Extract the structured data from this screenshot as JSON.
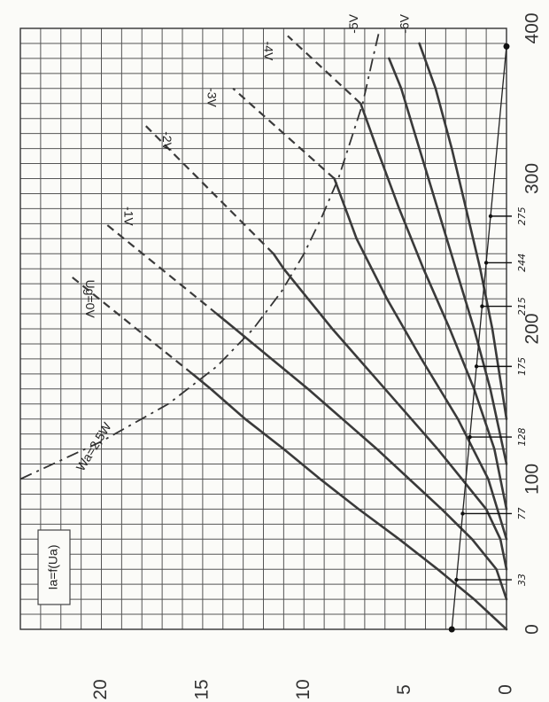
{
  "chart_data": {
    "type": "line",
    "title": "Ia=f(Ua)",
    "xlabel": "",
    "ylabel": "",
    "x_axis": {
      "range": [
        0,
        400
      ],
      "ticks": [
        0,
        100,
        200,
        300,
        400
      ],
      "tick_labels": [
        "0",
        "100",
        "200",
        "300",
        "400"
      ]
    },
    "y_axis": {
      "range": [
        0,
        20
      ],
      "ticks": [
        0,
        5,
        10,
        15,
        20
      ],
      "tick_labels": [
        "0",
        "5",
        "10",
        "15",
        "20"
      ]
    },
    "grid": true,
    "orientation": "rotated 90° clockwise (Ua axis runs top-to-bottom, Ia axis runs right-to-left)",
    "series": [
      {
        "name": "Ug=0V",
        "label_text": "Ug=0V",
        "x": [
          0,
          20,
          40,
          60,
          80,
          100,
          120,
          140,
          160,
          170
        ],
        "y": [
          0,
          1.6,
          3.4,
          5.3,
          7.3,
          9.2,
          11.0,
          12.9,
          14.6,
          15.5
        ]
      },
      {
        "name": "-1V",
        "label_text": "-1V",
        "x": [
          20,
          40,
          60,
          80,
          100,
          120,
          140,
          160,
          180,
          200,
          210
        ],
        "y": [
          0,
          0.5,
          1.7,
          3.2,
          4.8,
          6.4,
          8.1,
          9.8,
          11.6,
          13.4,
          14.3
        ]
      },
      {
        "name": "-2V",
        "label_text": "-2V",
        "x": [
          40,
          60,
          80,
          100,
          120,
          140,
          160,
          180,
          200,
          220,
          240,
          250
        ],
        "y": [
          0,
          0.3,
          1.0,
          2.2,
          3.4,
          4.7,
          6.0,
          7.3,
          8.6,
          9.8,
          11.0,
          11.5
        ]
      },
      {
        "name": "-3V",
        "label_text": "-3V",
        "x": [
          60,
          100,
          140,
          180,
          220,
          260,
          300
        ],
        "y": [
          0,
          0.9,
          2.4,
          4.2,
          5.9,
          7.4,
          8.5
        ]
      },
      {
        "name": "-4V",
        "label_text": "-4V",
        "x": [
          80,
          120,
          160,
          200,
          240,
          280,
          320,
          350
        ],
        "y": [
          0,
          0.6,
          1.6,
          2.8,
          4.1,
          5.3,
          6.4,
          7.2
        ]
      },
      {
        "name": "-5V",
        "label_text": "-5V",
        "x": [
          110,
          160,
          200,
          240,
          280,
          320,
          360,
          380
        ],
        "y": [
          0,
          0.8,
          1.6,
          2.5,
          3.4,
          4.3,
          5.2,
          5.8
        ]
      },
      {
        "name": "-6V",
        "label_text": "-6V",
        "x": [
          140,
          200,
          240,
          280,
          320,
          360,
          390
        ],
        "y": [
          0,
          0.7,
          1.3,
          2.0,
          2.7,
          3.5,
          4.3
        ]
      }
    ],
    "extrapolated_lines": [
      {
        "series": "Ug=0V",
        "x": [
          170,
          235
        ],
        "y": [
          15.5,
          21.5
        ]
      },
      {
        "series": "-1V",
        "x": [
          210,
          270
        ],
        "y": [
          14.3,
          19.8
        ]
      },
      {
        "series": "-2V",
        "x": [
          250,
          335
        ],
        "y": [
          11.5,
          17.8
        ]
      },
      {
        "series": "-3V",
        "x": [
          300,
          360
        ],
        "y": [
          8.5,
          13.5
        ]
      },
      {
        "series": "-4V",
        "x": [
          350,
          395
        ],
        "y": [
          7.2,
          10.8
        ]
      }
    ],
    "power_limit": {
      "label": "Wa=2,5W",
      "x": [
        100,
        125,
        150,
        175,
        200,
        225,
        250,
        275,
        300,
        325,
        350,
        380,
        400
      ],
      "y": [
        25.0,
        20.0,
        16.7,
        14.3,
        12.5,
        11.1,
        10.0,
        9.1,
        8.3,
        7.7,
        7.1,
        6.6,
        6.25
      ]
    },
    "load_line": {
      "x": [
        0,
        388
      ],
      "y": [
        2.7,
        0.0
      ]
    },
    "annotations": [
      {
        "label": "33",
        "x": 33
      },
      {
        "label": "77",
        "x": 77
      },
      {
        "label": "128",
        "x": 128
      },
      {
        "label": "175",
        "x": 175
      },
      {
        "label": "215",
        "x": 215
      },
      {
        "label": "244",
        "x": 244
      },
      {
        "label": "275",
        "x": 275
      }
    ]
  }
}
